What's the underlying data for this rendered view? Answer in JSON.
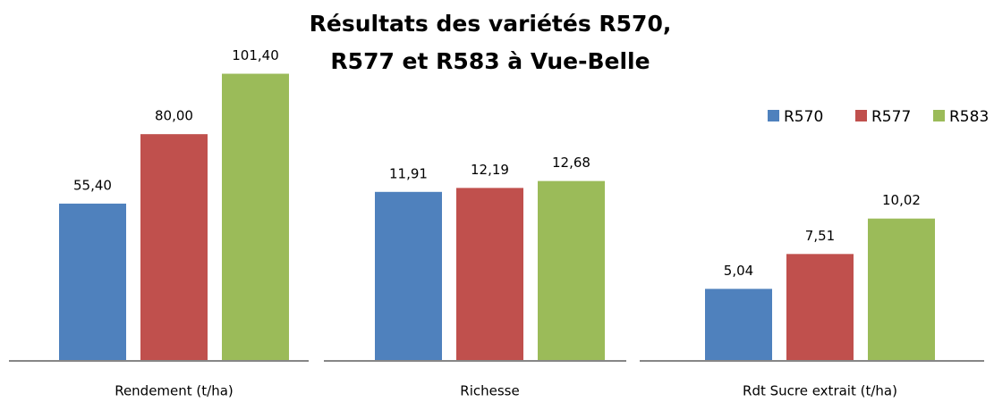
{
  "chart_data": [
    {
      "type": "bar",
      "title": [
        "Résultats des variétés R570,",
        "R577 et R583 à Vue-Belle"
      ],
      "categories": [
        "Rendement (t/ha)"
      ],
      "ylim": [
        0,
        106
      ],
      "series": [
        {
          "name": "R570",
          "color": "#4f81bd",
          "values": [
            55.4
          ],
          "value_labels": [
            "55,40"
          ]
        },
        {
          "name": "R577",
          "color": "#c0504d",
          "values": [
            80
          ],
          "value_labels": [
            "80,00"
          ]
        },
        {
          "name": "R583",
          "color": "#9bbb59",
          "values": [
            101.4
          ],
          "value_labels": [
            "101,40"
          ]
        }
      ]
    },
    {
      "type": "bar",
      "categories": [
        "Richesse"
      ],
      "ylim": [
        0,
        21.2
      ],
      "series": [
        {
          "name": "R570",
          "color": "#4f81bd",
          "values": [
            11.91
          ],
          "value_labels": [
            "11,91"
          ]
        },
        {
          "name": "R577",
          "color": "#c0504d",
          "values": [
            12.19
          ],
          "value_labels": [
            "12,19"
          ]
        },
        {
          "name": "R583",
          "color": "#9bbb59",
          "values": [
            12.68
          ],
          "value_labels": [
            "12,68"
          ]
        }
      ]
    },
    {
      "type": "bar",
      "categories": [
        "Rdt Sucre extrait (t/ha)"
      ],
      "ylim": [
        0,
        21.2
      ],
      "legend": "top-right",
      "series": [
        {
          "name": "R570",
          "color": "#4f81bd",
          "values": [
            5.04
          ],
          "value_labels": [
            "5,04"
          ]
        },
        {
          "name": "R577",
          "color": "#c0504d",
          "values": [
            7.51
          ],
          "value_labels": [
            "7,51"
          ]
        },
        {
          "name": "R583",
          "color": "#9bbb59",
          "values": [
            10.02
          ],
          "value_labels": [
            "10,02"
          ]
        }
      ]
    }
  ]
}
